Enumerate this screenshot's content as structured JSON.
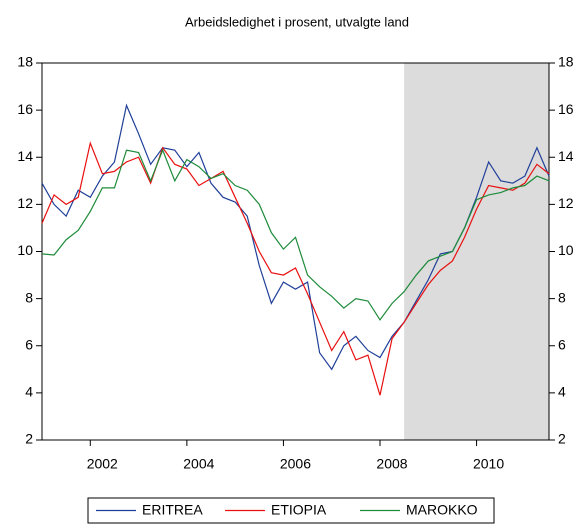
{
  "chart_data": {
    "type": "line",
    "title": "Arbeidsledighet i prosent, utvalgte land",
    "x": [
      2001,
      2001.25,
      2001.5,
      2001.75,
      2002,
      2002.25,
      2002.5,
      2002.75,
      2003,
      2003.25,
      2003.5,
      2003.75,
      2004,
      2004.25,
      2004.5,
      2004.75,
      2005,
      2005.25,
      2005.5,
      2005.75,
      2006,
      2006.25,
      2006.5,
      2006.75,
      2007,
      2007.25,
      2007.5,
      2007.75,
      2008,
      2008.25,
      2008.5,
      2008.75,
      2009,
      2009.25,
      2009.5,
      2009.75,
      2010,
      2010.25,
      2010.5,
      2010.75,
      2011,
      2011.25,
      2011.5
    ],
    "series": [
      {
        "name": "ERITREA",
        "color": "#1f3f99",
        "values": [
          12.9,
          12.0,
          11.5,
          12.6,
          12.3,
          13.2,
          13.8,
          16.2,
          15.0,
          13.7,
          14.4,
          14.3,
          13.6,
          14.2,
          12.9,
          12.3,
          12.1,
          11.5,
          9.4,
          7.8,
          8.7,
          8.4,
          8.7,
          5.7,
          5.0,
          6.0,
          6.4,
          5.8,
          5.5,
          6.4,
          7.0,
          7.9,
          8.8,
          9.9,
          10.0,
          11.0,
          12.3,
          13.8,
          13.0,
          12.9,
          13.2,
          14.4,
          13.2
        ]
      },
      {
        "name": "ETIOPIA",
        "color": "#e8100f",
        "values": [
          11.2,
          12.4,
          12.0,
          12.3,
          14.6,
          13.3,
          13.4,
          13.8,
          14.0,
          12.9,
          14.4,
          13.7,
          13.5,
          12.8,
          13.1,
          13.4,
          12.3,
          11.2,
          10.0,
          9.1,
          9.0,
          9.3,
          8.2,
          7.0,
          5.8,
          6.6,
          5.4,
          5.6,
          3.9,
          6.3,
          7.0,
          7.8,
          8.6,
          9.2,
          9.6,
          10.6,
          11.8,
          12.8,
          12.7,
          12.6,
          12.9,
          13.7,
          13.3
        ]
      },
      {
        "name": "MAROKKO",
        "color": "#1e8b3a",
        "values": [
          9.9,
          9.85,
          10.5,
          10.9,
          11.7,
          12.7,
          12.7,
          14.3,
          14.2,
          13.0,
          14.3,
          13.0,
          13.9,
          13.6,
          13.1,
          13.3,
          12.8,
          12.6,
          12.0,
          10.8,
          10.1,
          10.6,
          9.0,
          8.5,
          8.1,
          7.6,
          8.0,
          7.9,
          7.1,
          7.8,
          8.3,
          9.0,
          9.6,
          9.8,
          10.0,
          11.0,
          12.2,
          12.4,
          12.5,
          12.7,
          12.8,
          13.2,
          13.0
        ]
      }
    ],
    "xlim": [
      2001,
      2011.5
    ],
    "xticks": [
      2002,
      2004,
      2006,
      2008,
      2010
    ],
    "ylim": [
      2,
      18
    ],
    "yticks": [
      2,
      4,
      6,
      8,
      10,
      12,
      14,
      16,
      18
    ],
    "y2lim": [
      2,
      18
    ],
    "y2ticks": [
      2,
      4,
      6,
      8,
      10,
      12,
      14,
      16,
      18
    ],
    "shaded_xrange": [
      2008.5,
      2011.5
    ],
    "shade_color": "#dcdcdc"
  }
}
